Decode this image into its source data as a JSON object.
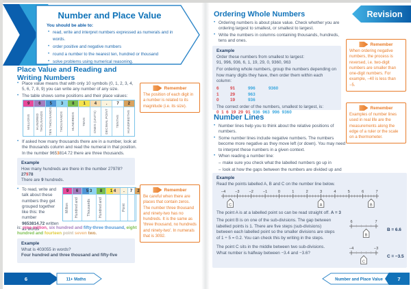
{
  "colors": {
    "brand_blue": "#1173b9",
    "banner_dark_blue": "#0a5fae",
    "banner_light_blue": "#2d9fd8",
    "example_box_bg": "#e9eef7",
    "remember_orange": "#e87b28",
    "red_number": "#d9474d",
    "blue_number": "#3ba7de",
    "body_text": "#44546a"
  },
  "left": {
    "banner": {
      "title": "Number and Place Value",
      "lead": "You should be able to:",
      "bullets": [
        "read, write and interpret numbers expressed as numerals and in words.",
        "order positive and negative numbers",
        "round a number to the nearest ten, hundred or thousand",
        "solve problems using numerical reasoning."
      ]
    },
    "heading": [
      "Place Value and Reading and",
      "Writing Numbers"
    ],
    "bullets": {
      "b1": "Place value means that with only 10 symbols (0, 1, 2, 3, 4, 5, 6, 7, 8, 9) you can write any number of any size.",
      "b2": "The table shows some positions and their place values:"
    },
    "b3_runs": [
      {
        "t": "If asked how many thousands there are in a number, look at the thousands column and read the numeral in that position. In the number 965"
      },
      {
        "t": "3",
        "c": "#e87b28",
        "b": true
      },
      {
        "t": "814.72 there are three thousands."
      }
    ],
    "table1": {
      "cols": [
        {
          "d": "9",
          "label": "MILLIONS",
          "bg": "#e84a9b"
        },
        {
          "d": "6",
          "label": "HUNDRED THOUSANDS",
          "bg": "#a47cbe"
        },
        {
          "d": "5",
          "label": "TEN THOUSANDS",
          "bg": "#4f96d6"
        },
        {
          "d": "3",
          "label": "THOUSANDS",
          "bg": "#8ed4f0"
        },
        {
          "d": "8",
          "label": "HUNDREDS",
          "bg": "#7bbf4e"
        },
        {
          "d": "1",
          "label": "TENS",
          "bg": "#f5e34d"
        },
        {
          "d": "4",
          "label": "ONES (UNITS)",
          "bg": "#f8dcae"
        },
        {
          "d": ".",
          "label": "DECIMAL POINT",
          "bg": "#fbf3dd"
        },
        {
          "d": "7",
          "label": "TENTHS",
          "bg": "#ffffff"
        },
        {
          "d": "2",
          "label": "HUNDREDTHS",
          "bg": "#d9a35f"
        }
      ]
    },
    "example1": {
      "title": "Example",
      "q": "How many hundreds are there in the number 27978?",
      "working": [
        {
          "t": "27",
          "b": true
        },
        {
          "t": "9",
          "c": "#d9474d",
          "b": true
        },
        {
          "t": "78",
          "b": true
        }
      ],
      "answer": [
        {
          "t": "There are "
        },
        {
          "t": "9",
          "b": true
        },
        {
          "t": " hundreds."
        }
      ]
    },
    "b4_runs": [
      {
        "t": "To read, write and talk about these numbers they get grouped together like this: the number "
      },
      {
        "t": "9653814.72",
        "b": true
      },
      {
        "t": " written as words"
      }
    ],
    "table2": {
      "cols": [
        {
          "d": "9",
          "label": "Million",
          "bg": "#e84a9b"
        },
        {
          "d": "6",
          "label": "Hundred and",
          "bg": "#a47cbe"
        },
        {
          "d": "5 3",
          "label": "Thousands",
          "bg": "linear-gradient(90deg,#4f96d6 50%,#8ed4f0 50%)"
        },
        {
          "d": "8",
          "label": "Hundred and",
          "bg": "#7bbf4e"
        },
        {
          "d": "1 4",
          "label": "",
          "bg": "linear-gradient(90deg,#f5e34d 50%,#f8dcae 50%)"
        },
        {
          "d": ".",
          "label": "Point",
          "bg": "#fbf3dd"
        },
        {
          "d": "7",
          "label": "",
          "bg": "#fdfdfb"
        },
        {
          "d": "2",
          "label": "",
          "bg": "#d9a35f"
        }
      ]
    },
    "words_runs": [
      {
        "t": "is: "
      },
      {
        "t": "nine million,",
        "c": "#e84a9b",
        "b": true
      },
      {
        "t": " six hundred and ",
        "c": "#a47cbe",
        "b": true
      },
      {
        "t": "fifty-three thousand,",
        "c": "#4f96d6",
        "b": true
      },
      {
        "t": " eight hundred and ",
        "c": "#7bbf4e",
        "b": true
      },
      {
        "t": "fourteen",
        "c": "#e0ca38",
        "b": true
      },
      {
        "t": " point ",
        "c": "#c3b9a6",
        "b": true
      },
      {
        "t": "seven",
        "c": "#f0b87a",
        "b": true
      },
      {
        "t": " two.",
        "c": "#c98f4d",
        "b": true
      }
    ],
    "example2": {
      "title": "Example",
      "q": "What is 403055 in words?",
      "a": "Four hundred and three thousand and fifty-five"
    },
    "remember1": {
      "title": "Remember",
      "text": "The position of each digit in a number is related to its magnitude (i.e. its size)."
    },
    "remember2": {
      "title": "Remember",
      "text": "Be careful when there are places that contain zeros. The number three thousand and ninety-two has no hundreds. It is the same as 'three thousand, no hundreds and ninety-two'. In numerals that is 3092."
    },
    "footer": {
      "page": "6",
      "label": "11+ Maths"
    }
  },
  "right": {
    "revision_label": "Revision",
    "ordering": {
      "heading": "Ordering Whole Numbers",
      "bullets": [
        "Ordering numbers is about place value. Check whether you are ordering largest to smallest, or smallest to largest.",
        "Write the numbers in columns containing thousands, hundreds, tens and ones."
      ],
      "example": {
        "title": "Example",
        "intro": "Order these numbers from smallest to largest:",
        "numbers": "91, 996, 936, 6, 1, 19, 29, 0, 9360, 963",
        "explain": "For ordering whole numbers, group the numbers depending on how many digits they have, then order them within each column:",
        "grid": [
          [
            "6",
            "91",
            "996",
            "9360"
          ],
          [
            "1",
            "29",
            "963",
            ""
          ],
          [
            "0",
            "19",
            "936",
            ""
          ]
        ],
        "result_label": "The correct order of the numbers, smallest to largest, is:",
        "result_runs": [
          {
            "t": "0",
            "c": "#d9474d",
            "b": true
          },
          {
            "t": "1",
            "c": "#d9474d",
            "b": true
          },
          {
            "t": "6",
            "c": "#d9474d",
            "b": true
          },
          {
            "t": "19",
            "c": "#d9474d",
            "b": true
          },
          {
            "t": "29",
            "c": "#d9474d",
            "b": true
          },
          {
            "t": "91",
            "c": "#d9474d",
            "b": true
          },
          {
            "t": "936",
            "c": "#3ba7de",
            "b": true
          },
          {
            "t": "963",
            "c": "#3ba7de",
            "b": true
          },
          {
            "t": "996",
            "c": "#3ba7de",
            "b": true
          },
          {
            "t": "9360",
            "c": "#3ba7de",
            "b": true
          }
        ]
      }
    },
    "number_lines": {
      "heading": "Number Lines",
      "bullets": [
        "Number lines help you to think about the relative positions of numbers.",
        "Some number lines include negative numbers. The numbers become more negative as they move left (or down). You may need to interpret these numbers in a given context.",
        "When reading a number line:"
      ],
      "sub_bullets": [
        "make sure you check what the labelled numbers go up in",
        "look at how the gaps between the numbers are divided up and check the sub-divisions make sense."
      ],
      "example": {
        "title": "Example",
        "intro": "Read the points labelled A, B and C on the number line below.",
        "main_line": {
          "min": -4,
          "max": 7,
          "sub": 5,
          "baseline": 12,
          "pad": 8,
          "points": [
            {
              "label": "C",
              "value": -3.5
            },
            {
              "label": "A",
              "value": 3
            },
            {
              "label": "B",
              "value": 6.6
            }
          ]
        },
        "p1_runs": [
          {
            "t": "The point A is at a labelled point so can be read straight off. "
          },
          {
            "t": "A = 3",
            "b": true
          }
        ],
        "p2": "The point B is on one of the sub-divisions. The gap between labelled points is 1. There are five steps (sub-divisions) between each labelled point so the smaller divisions are steps of 1 ÷ 5 = 0.2. You can check this by writing in the steps.",
        "p3a": "The point C sits in the middle between two sub-divisions.",
        "p3b": "What number is halfway between −3.4 and −3.6?",
        "mini1": {
          "min": 6,
          "max": 7,
          "sub": 5,
          "dashed": true,
          "baseline": 12,
          "pad": 13,
          "points": [
            {
              "label": "B",
              "value": 6.6
            }
          ],
          "caption": "B = 6.6"
        },
        "mini2": {
          "min": -4,
          "max": -3,
          "sub": 5,
          "dashed": true,
          "baseline": 12,
          "pad": 13,
          "points": [
            {
              "label": "C",
              "value": -3.5
            }
          ],
          "caption": "C = −3.5"
        }
      }
    },
    "remember1": {
      "title": "Remember",
      "text": "When ordering negative numbers, the process is reversed, i.e. two-digit numbers are smaller than one-digit numbers. For example, −40 is less than −5."
    },
    "remember2": {
      "title": "Remember",
      "text": "Examples of number lines used in real life are the measurements along the edge of a ruler or the scale on a thermometer."
    },
    "footer": {
      "page": "7",
      "label": "Number and Place Value"
    }
  }
}
